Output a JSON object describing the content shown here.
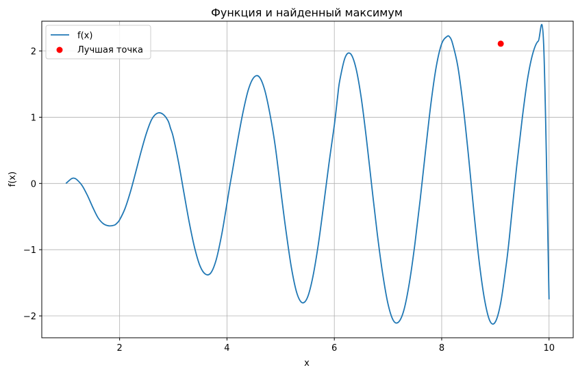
{
  "chart_data": {
    "type": "line",
    "title": "Функция и найденный максимум",
    "xlabel": "x",
    "ylabel": "f(x)",
    "xlim": [
      0.55,
      10.45
    ],
    "ylim": [
      -2.33,
      2.45
    ],
    "x_ticks": [
      2,
      4,
      6,
      8,
      10
    ],
    "y_ticks": [
      -2,
      -1,
      0,
      1,
      2
    ],
    "x_tick_labels": [
      "2",
      "4",
      "6",
      "8",
      "10"
    ],
    "y_tick_labels": [
      "−2",
      "−1",
      "0",
      "1",
      "2"
    ],
    "grid": true,
    "legend_position": "top-left",
    "series": [
      {
        "name": "f(x)",
        "type": "line",
        "color": "#1f77b4",
        "x": [
          1.0,
          1.1,
          1.15,
          1.2,
          1.3,
          1.4,
          1.5,
          1.6,
          1.7,
          1.8,
          1.9,
          1.95,
          2.0,
          2.1,
          2.2,
          2.3,
          2.4,
          2.5,
          2.6,
          2.7,
          2.8,
          2.9,
          2.95,
          3.0,
          3.1,
          3.2,
          3.3,
          3.4,
          3.5,
          3.6,
          3.7,
          3.8,
          3.9,
          3.98,
          4.05,
          4.1,
          4.2,
          4.3,
          4.4,
          4.5,
          4.6,
          4.7,
          4.8,
          4.9,
          5.02,
          5.1,
          5.2,
          5.3,
          5.4,
          5.5,
          5.6,
          5.7,
          5.8,
          5.9,
          6.0,
          6.06,
          6.1,
          6.2,
          6.3,
          6.4,
          6.5,
          6.6,
          6.7,
          6.8,
          6.9,
          7.0,
          7.1,
          7.2,
          7.3,
          7.4,
          7.5,
          7.6,
          7.7,
          7.8,
          7.9,
          8.0,
          8.1,
          8.15,
          8.2,
          8.3,
          8.4,
          8.5,
          8.6,
          8.7,
          8.8,
          8.9,
          9.0,
          9.1,
          9.2,
          9.25,
          9.3,
          9.4,
          9.5,
          9.6,
          9.7,
          9.8,
          9.9,
          10.0
        ],
        "y": [
          0.0,
          0.07,
          0.08,
          0.06,
          -0.03,
          -0.18,
          -0.36,
          -0.52,
          -0.61,
          -0.64,
          -0.63,
          -0.6,
          -0.55,
          -0.38,
          -0.13,
          0.17,
          0.48,
          0.76,
          0.97,
          1.06,
          1.05,
          0.95,
          0.83,
          0.7,
          0.31,
          -0.15,
          -0.6,
          -0.98,
          -1.25,
          -1.37,
          -1.35,
          -1.15,
          -0.78,
          -0.4,
          -0.05,
          0.18,
          0.65,
          1.08,
          1.42,
          1.6,
          1.61,
          1.42,
          1.05,
          0.56,
          -0.22,
          -0.72,
          -1.27,
          -1.65,
          -1.8,
          -1.72,
          -1.41,
          -0.93,
          -0.33,
          0.3,
          0.88,
          1.3,
          1.55,
          1.9,
          1.96,
          1.75,
          1.3,
          0.66,
          -0.06,
          -0.76,
          -1.36,
          -1.82,
          -2.07,
          -2.09,
          -1.9,
          -1.49,
          -0.92,
          -0.24,
          0.5,
          1.21,
          1.77,
          2.11,
          2.22,
          2.21,
          2.12,
          1.77,
          1.17,
          0.41,
          -0.43,
          -1.19,
          -1.76,
          -2.08,
          -2.09,
          -1.8,
          -1.24,
          -0.9,
          -0.5,
          0.28,
          0.98,
          1.58,
          1.97,
          2.15,
          2.09,
          -1.75
        ],
        "note_x_is_transformed": false
      }
    ],
    "points": [
      {
        "name": "Лучшая точка",
        "x": 9.1,
        "y": 2.11,
        "color": "#ff0000"
      }
    ]
  }
}
